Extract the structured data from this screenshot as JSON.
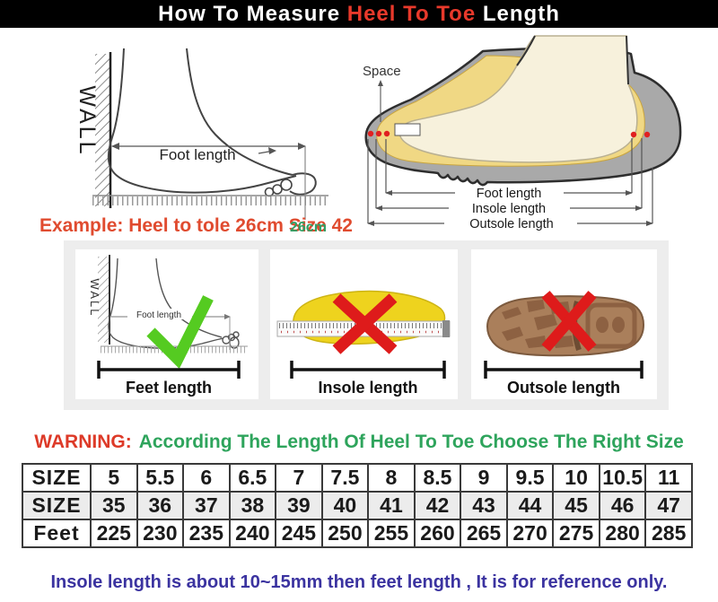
{
  "title": {
    "prefix": "How To Measure ",
    "highlight": "Heel To Toe",
    "suffix": " Length"
  },
  "diagram_left": {
    "wall": "WALL",
    "foot_length": "Foot length"
  },
  "example": {
    "text": "Example: Heel to tole 26cm Size 42",
    "measure": "26cm"
  },
  "diagram_right": {
    "space": "Space",
    "foot_length": "Foot length",
    "insole_length": "Insole length",
    "outsole_length": "Outsole length"
  },
  "panels": {
    "feet": {
      "wall": "WALL",
      "inner": "Foot length",
      "label": "Feet length",
      "mark": "check"
    },
    "insole": {
      "label": "Insole length",
      "mark": "cross"
    },
    "outsole": {
      "label": "Outsole length",
      "mark": "cross"
    }
  },
  "warning": {
    "prefix": "WARNING:",
    "text": "According The Length Of Heel To Toe Choose The Right Size"
  },
  "size_table": {
    "rows": [
      {
        "header": "SIZE",
        "values": [
          "5",
          "5.5",
          "6",
          "6.5",
          "7",
          "7.5",
          "8",
          "8.5",
          "9",
          "9.5",
          "10",
          "10.5",
          "11"
        ]
      },
      {
        "header": "SIZE",
        "values": [
          "35",
          "36",
          "37",
          "38",
          "39",
          "40",
          "41",
          "42",
          "43",
          "44",
          "45",
          "46",
          "47"
        ]
      },
      {
        "header": "Feet",
        "values": [
          "225",
          "230",
          "235",
          "240",
          "245",
          "250",
          "255",
          "260",
          "265",
          "270",
          "275",
          "280",
          "285"
        ]
      }
    ]
  },
  "note": "Insole length is about 10~15mm then feet length , It is for reference only.",
  "colors": {
    "title_bg": "#000000",
    "title_fg": "#ffffff",
    "title_accent": "#e8392b",
    "example_red": "#e04b2f",
    "measure_green": "#2fa065",
    "warning_red": "#dd3a28",
    "warning_green": "#2ea45c",
    "note_blue": "#3b33a0",
    "panel_band_gray": "#ededed",
    "table_alt_row": "#ececec",
    "check_green": "#55cb21",
    "cross_red": "#de1b1b",
    "insole_yellow": "#eed31e",
    "outsole_brown": "#aa7f5b",
    "shoe_gray": "#a9a9a9",
    "foot_cream": "#f7f1dc",
    "lining_yellow": "#f0d884"
  }
}
